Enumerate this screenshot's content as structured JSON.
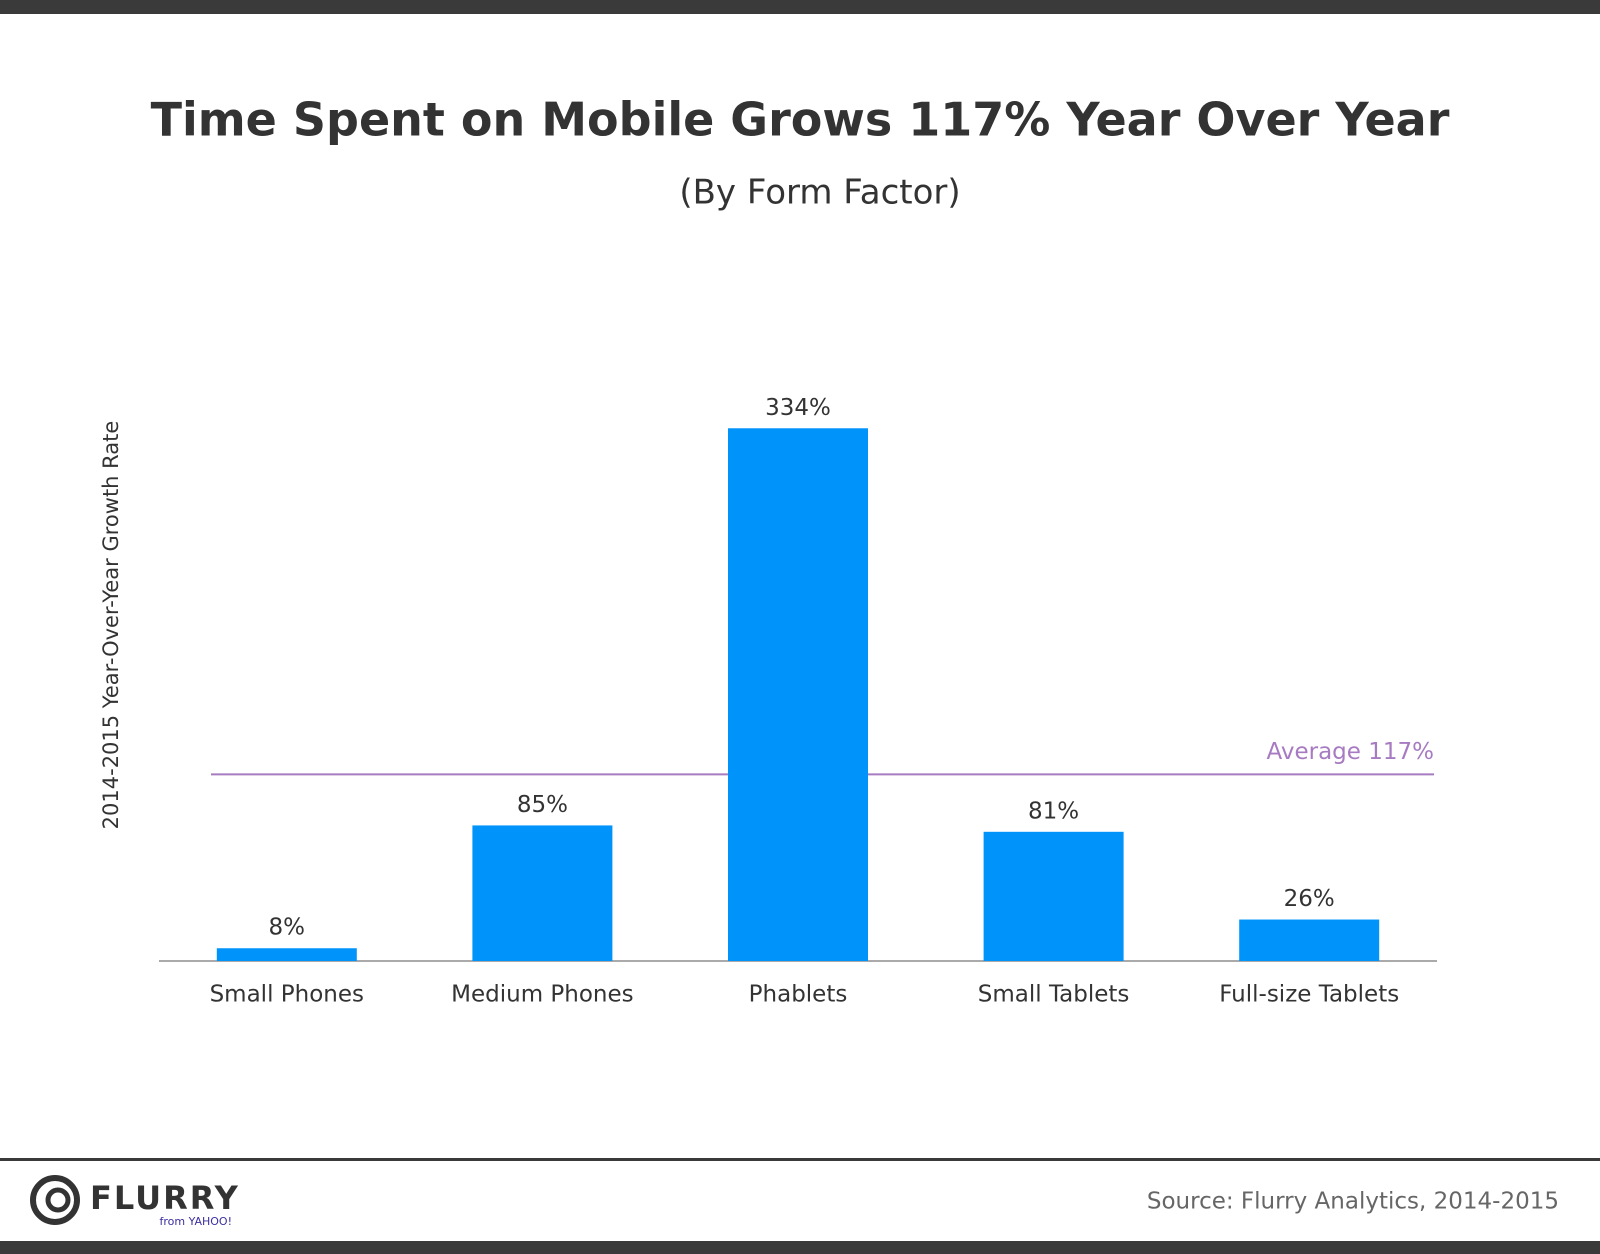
{
  "chart_data": {
    "type": "bar",
    "title": "Time Spent on Mobile Grows 117% Year Over Year",
    "subtitle": "(By Form Factor)",
    "y_label": "2014-2015 Year-Over-Year Growth Rate",
    "categories": [
      "Small Phones",
      "Medium Phones",
      "Phablets",
      "Small Tablets",
      "Full-size Tablets"
    ],
    "values": [
      8,
      85,
      334,
      81,
      26
    ],
    "value_labels": [
      "8%",
      "85%",
      "334%",
      "81%",
      "26%"
    ],
    "color": "#0094fb",
    "ylim": [
      0,
      400
    ],
    "reference_line": {
      "value": 117,
      "label": "Average 117%",
      "color": "#a77bc1"
    }
  },
  "footer": {
    "logo": "FLURRY",
    "logo_sub": "from YAHOO!",
    "source": "Source: Flurry Analytics, 2014-2015"
  }
}
